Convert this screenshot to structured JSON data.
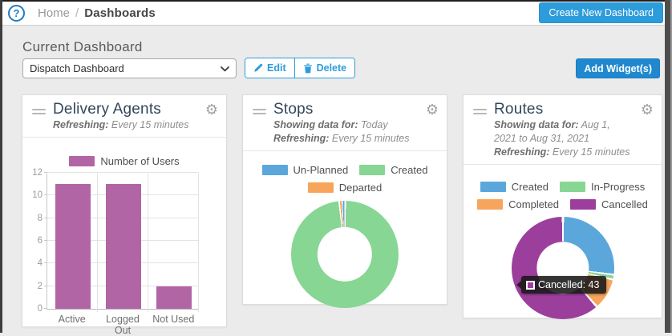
{
  "icons": {
    "help": "?",
    "gear": "⚙"
  },
  "colors": {
    "accent_blue": "#2D9CDB",
    "add_widget_blue": "#1F88CE",
    "bar_purple": "#B165A5",
    "donut_blue": "#5BA7DC",
    "donut_green": "#87D694",
    "donut_orange": "#F7A55C",
    "donut_purple": "#9C3F9C",
    "title_navy": "#33475B",
    "background_gray": "#EBEBEB"
  },
  "topbar": {
    "breadcrumb": {
      "home": "Home",
      "separator": "/",
      "current": "Dashboards"
    },
    "create_button_label": "Create New Dashboard"
  },
  "main": {
    "heading": "Current Dashboard",
    "dashboard_select": {
      "value": "Dispatch Dashboard"
    },
    "edit_button_label": "Edit",
    "delete_button_label": "Delete",
    "add_widgets_button_label": "Add Widget(s)"
  },
  "widgets": [
    {
      "title": "Delivery Agents",
      "subtitle_parts": [
        {
          "t": "Refreshing:",
          "b": true
        },
        {
          "t": " Every 15 minutes",
          "b": false
        }
      ]
    },
    {
      "title": "Stops",
      "subtitle_parts": [
        {
          "t": "Showing data for:",
          "b": true
        },
        {
          "t": " Today ",
          "b": false
        },
        {
          "t": "Refreshing:",
          "b": true
        },
        {
          "t": " Every 15 minutes",
          "b": false
        }
      ]
    },
    {
      "title": "Routes",
      "subtitle_parts": [
        {
          "t": "Showing data for:",
          "b": true
        },
        {
          "t": " Aug 1, 2021 to Aug 31, 2021 ",
          "b": false
        },
        {
          "t": "Refreshing:",
          "b": true
        },
        {
          "t": " Every 15 minutes",
          "b": false
        }
      ]
    }
  ],
  "chart_data": [
    {
      "type": "bar",
      "widget": "Delivery Agents",
      "categories": [
        "Active",
        "Logged Out",
        "Not Used"
      ],
      "series": [
        {
          "name": "Number of Users",
          "values": [
            11,
            11,
            2
          ],
          "color": "#B165A5"
        }
      ],
      "ylim": [
        0,
        12
      ],
      "yticks": [
        0,
        2,
        4,
        6,
        8,
        10,
        12
      ],
      "grid": true,
      "legend_position": "top"
    },
    {
      "type": "donut",
      "widget": "Stops",
      "legend": [
        {
          "label": "Un-Planned",
          "color": "#5BA7DC"
        },
        {
          "label": "Created",
          "color": "#87D694"
        },
        {
          "label": "Departed",
          "color": "#F7A55C"
        }
      ],
      "values_unit": "percent_estimated",
      "segments_clockwise_from_top": [
        {
          "label": "Created",
          "color": "#87D694",
          "value": 98.4
        },
        {
          "label": "Departed",
          "color": "#F7A55C",
          "value": 0.8
        },
        {
          "label": "Un-Planned",
          "color": "#5BA7DC",
          "value": 0.8
        }
      ],
      "legend_position": "top"
    },
    {
      "type": "donut",
      "widget": "Routes",
      "legend": [
        {
          "label": "Created",
          "color": "#5BA7DC"
        },
        {
          "label": "In-Progress",
          "color": "#87D694"
        },
        {
          "label": "Completed",
          "color": "#F7A55C"
        },
        {
          "label": "Cancelled",
          "color": "#9C3F9C"
        }
      ],
      "values_unit": "count; Cancelled shown in tooltip, others estimated from arc angles",
      "segments_clockwise_from_top": [
        {
          "label": "Created",
          "color": "#5BA7DC",
          "value": 19
        },
        {
          "label": "In-Progress",
          "color": "#87D694",
          "value": 1
        },
        {
          "label": "Completed",
          "color": "#F7A55C",
          "value": 7
        },
        {
          "label": "Cancelled",
          "color": "#9C3F9C",
          "value": 43
        }
      ],
      "tooltip": {
        "text": "Cancelled: 43",
        "swatch_color": "#9C3F9C"
      },
      "legend_position": "top"
    }
  ]
}
